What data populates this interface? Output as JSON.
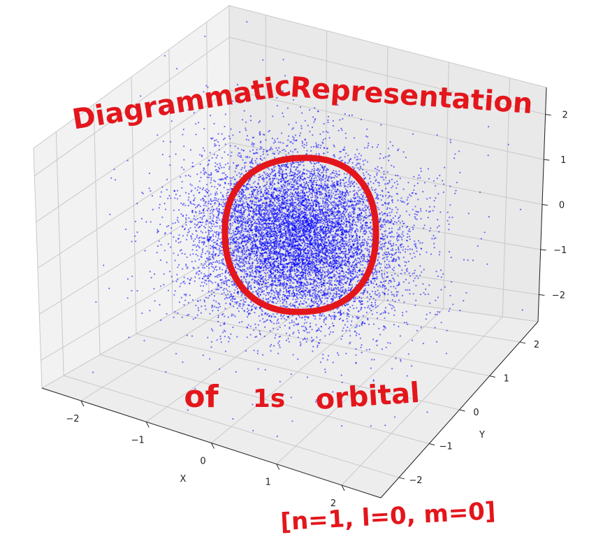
{
  "chart_data": {
    "type": "scatter",
    "dimensions": 3,
    "title": "",
    "xlabel": "X",
    "ylabel": "Y",
    "zlabel": "",
    "xlim": [
      -2.6,
      2.6
    ],
    "ylim": [
      -2.6,
      2.6
    ],
    "zlim": [
      -2.6,
      2.6
    ],
    "x_ticks": [
      -2,
      -1,
      0,
      1,
      2
    ],
    "y_ticks": [
      -2,
      -1,
      0,
      1,
      2
    ],
    "z_ticks": [
      -2,
      -1,
      0,
      1,
      2
    ],
    "x_tick_labels": [
      "−2",
      "−1",
      "0",
      "1",
      "2"
    ],
    "y_tick_labels": [
      "−2",
      "−1",
      "0",
      "1",
      "2"
    ],
    "z_tick_labels": [
      "−2",
      "−1",
      "0",
      "1",
      "2"
    ],
    "grid": true,
    "series": [
      {
        "distribution": "gaussian-cloud",
        "center": [
          0,
          0,
          0
        ],
        "spread_sigma": 0.7,
        "point_count": 10000,
        "color": "#0000ff",
        "alpha": 0.55
      }
    ],
    "annotations": [
      {
        "text": "Diagrammatic",
        "color": "#e3161c"
      },
      {
        "text": "Representation",
        "color": "#e3161c"
      },
      {
        "text": "of",
        "color": "#e3161c"
      },
      {
        "text": "1s",
        "color": "#e3161c"
      },
      {
        "text": "orbital",
        "color": "#e3161c"
      },
      {
        "text": "[n=1, l=0, m=0]",
        "color": "#e3161c"
      }
    ],
    "highlight_circle_color": "#e3161c",
    "pane_color": "#f2f2f2",
    "grid_color": "#c8c8c8"
  }
}
